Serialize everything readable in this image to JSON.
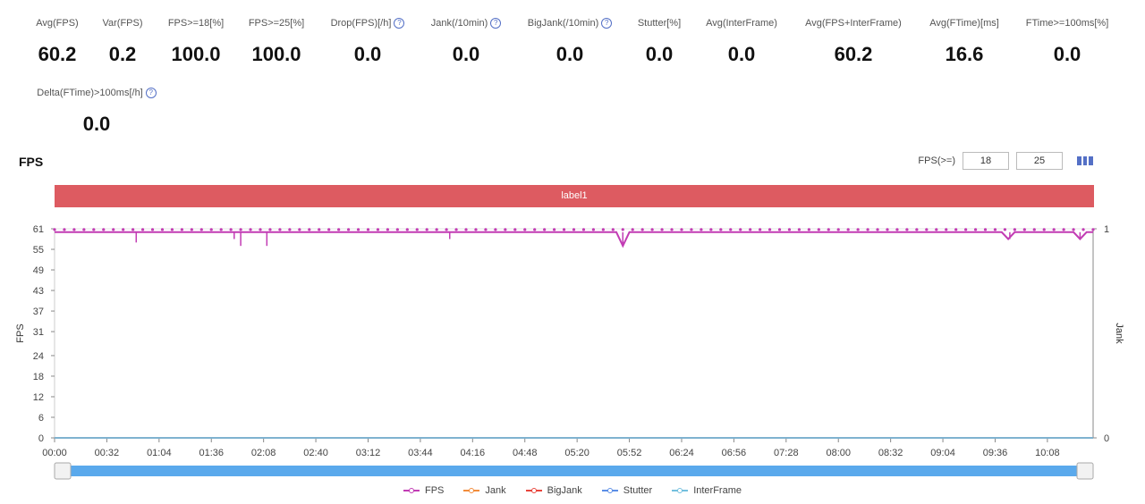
{
  "metrics": [
    {
      "label": "Avg(FPS)",
      "value": "60.2",
      "info": false
    },
    {
      "label": "Var(FPS)",
      "value": "0.2",
      "info": false
    },
    {
      "label": "FPS>=18[%]",
      "value": "100.0",
      "info": false
    },
    {
      "label": "FPS>=25[%]",
      "value": "100.0",
      "info": false
    },
    {
      "label": "Drop(FPS)[/h]",
      "value": "0.0",
      "info": true
    },
    {
      "label": "Jank(/10min)",
      "value": "0.0",
      "info": true
    },
    {
      "label": "BigJank(/10min)",
      "value": "0.0",
      "info": true
    },
    {
      "label": "Stutter[%]",
      "value": "0.0",
      "info": false
    },
    {
      "label": "Avg(InterFrame)",
      "value": "0.0",
      "info": false
    },
    {
      "label": "Avg(FPS+InterFrame)",
      "value": "60.2",
      "info": false
    },
    {
      "label": "Avg(FTime)[ms]",
      "value": "16.6",
      "info": false
    },
    {
      "label": "FTime>=100ms[%]",
      "value": "0.0",
      "info": false
    },
    {
      "label": "Delta(FTime)>100ms[/h]",
      "value": "0.0",
      "info": true
    }
  ],
  "section": {
    "title": "FPS"
  },
  "fps_filter": {
    "label": "FPS(>=)",
    "low": "18",
    "high": "25"
  },
  "label_bar": {
    "text": "label1"
  },
  "chart_data": {
    "type": "line",
    "ylabel": "FPS",
    "y2label": "Jank",
    "ylim": [
      0,
      61
    ],
    "y_ticks": [
      "0",
      "6",
      "12",
      "18",
      "24",
      "31",
      "37",
      "43",
      "49",
      "55",
      "61"
    ],
    "y2_ticks": [
      "0",
      "1"
    ],
    "x_ticks": [
      "00:00",
      "00:32",
      "01:04",
      "01:36",
      "02:08",
      "02:40",
      "03:12",
      "03:44",
      "04:16",
      "04:48",
      "05:20",
      "05:52",
      "06:24",
      "06:56",
      "07:28",
      "08:00",
      "08:32",
      "09:04",
      "09:36",
      "10:08"
    ],
    "x_range_seconds": [
      0,
      636
    ],
    "series": [
      {
        "name": "FPS",
        "color": "#c23cb4",
        "baseline": 60,
        "dips": [
          {
            "t": 50,
            "v": 57
          },
          {
            "t": 110,
            "v": 58
          },
          {
            "t": 114,
            "v": 56
          },
          {
            "t": 130,
            "v": 56
          },
          {
            "t": 242,
            "v": 58
          },
          {
            "t": 348,
            "v": 56
          },
          {
            "t": 585,
            "v": 58
          },
          {
            "t": 628,
            "v": 58
          }
        ]
      },
      {
        "name": "Jank",
        "color": "#f28c3a",
        "values": "all 0"
      },
      {
        "name": "BigJank",
        "color": "#e8453c",
        "values": "all 0"
      },
      {
        "name": "Stutter",
        "color": "#5b8ee6",
        "values": "all 0"
      },
      {
        "name": "InterFrame",
        "color": "#73c0de",
        "values": "all 0"
      }
    ]
  }
}
